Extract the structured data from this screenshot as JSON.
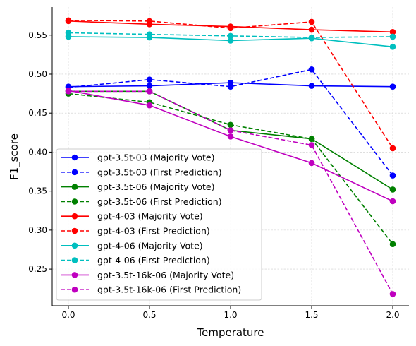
{
  "chart_data": {
    "type": "line",
    "xlabel": "Temperature",
    "ylabel": "F1_score",
    "x": [
      0.0,
      0.5,
      1.0,
      1.5,
      2.0
    ],
    "x_ticks": [
      "0.0",
      "0.5",
      "1.0",
      "1.5",
      "2.0"
    ],
    "y_ticks": [
      "0.25",
      "0.30",
      "0.35",
      "0.40",
      "0.45",
      "0.50",
      "0.55"
    ],
    "xlim": [
      -0.1,
      2.1
    ],
    "ylim": [
      0.203,
      0.586
    ],
    "grid": true,
    "legend_position": "lower-left",
    "series": [
      {
        "name": "gpt-3.5t-03 (Majority Vote)",
        "color": "#0000ff",
        "style": "solid",
        "values": [
          0.484,
          0.485,
          0.489,
          0.485,
          0.484
        ]
      },
      {
        "name": "gpt-3.5t-03 (First Prediction)",
        "color": "#0000ff",
        "style": "dashed",
        "values": [
          0.483,
          0.493,
          0.484,
          0.506,
          0.37
        ]
      },
      {
        "name": "gpt-3.5t-06 (Majority Vote)",
        "color": "#008000",
        "style": "solid",
        "values": [
          0.478,
          0.478,
          0.428,
          0.417,
          0.352
        ]
      },
      {
        "name": "gpt-3.5t-06 (First Prediction)",
        "color": "#008000",
        "style": "dashed",
        "values": [
          0.475,
          0.464,
          0.435,
          0.417,
          0.282
        ]
      },
      {
        "name": "gpt-4-03 (Majority Vote)",
        "color": "#ff0000",
        "style": "solid",
        "values": [
          0.568,
          0.564,
          0.561,
          0.557,
          0.554
        ]
      },
      {
        "name": "gpt-4-03 (First Prediction)",
        "color": "#ff0000",
        "style": "dashed",
        "values": [
          0.569,
          0.568,
          0.559,
          0.567,
          0.405
        ]
      },
      {
        "name": "gpt-4-06 (Majority Vote)",
        "color": "#00bfbf",
        "style": "solid",
        "values": [
          0.548,
          0.547,
          0.543,
          0.546,
          0.535
        ]
      },
      {
        "name": "gpt-4-06 (First Prediction)",
        "color": "#00bfbf",
        "style": "dashed",
        "values": [
          0.553,
          0.551,
          0.549,
          0.547,
          0.548
        ]
      },
      {
        "name": "gpt-3.5t-16k-06 (Majority Vote)",
        "color": "#bf00bf",
        "style": "solid",
        "values": [
          0.479,
          0.46,
          0.42,
          0.386,
          0.337
        ]
      },
      {
        "name": "gpt-3.5t-16k-06 (First Prediction)",
        "color": "#bf00bf",
        "style": "dashed",
        "values": [
          0.478,
          0.478,
          0.428,
          0.409,
          0.218
        ]
      }
    ]
  }
}
